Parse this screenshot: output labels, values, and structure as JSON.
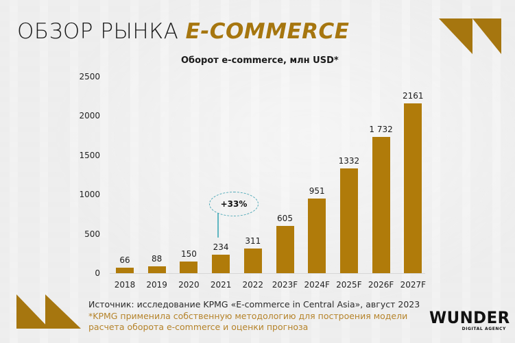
{
  "header": {
    "title_main": "ОБЗОР РЫНКА ",
    "title_accent": "E-COMMERCE"
  },
  "colors": {
    "bar": "#b07b0a",
    "accent": "#a6760f",
    "callout": "#4fa9b7",
    "note": "#b5832a",
    "background": "#ededed"
  },
  "chart_data": {
    "type": "bar",
    "title": "Оборот e-commerce, млн USD*",
    "xlabel": "",
    "ylabel": "",
    "ylim": [
      0,
      2500
    ],
    "yticks": [
      0,
      500,
      1000,
      1500,
      2000,
      2500
    ],
    "grid": false,
    "categories": [
      "2018",
      "2019",
      "2020",
      "2021",
      "2022",
      "2023F",
      "2024F",
      "2025F",
      "2026F",
      "2027F"
    ],
    "values": [
      66,
      88,
      150,
      234,
      311,
      605,
      951,
      1332,
      1732,
      2161
    ],
    "value_labels": [
      "66",
      "88",
      "150",
      "234",
      "311",
      "605",
      "951",
      "1332",
      "1 732",
      "2161"
    ],
    "annotations": [
      {
        "text": "+33%",
        "anchor_category": "2021",
        "style": "dashed-ellipse"
      }
    ]
  },
  "footer": {
    "source": "Источник: исследование KPMG «E-commerce in Central Asia», август 2023",
    "note_line1": "*KPMG применила собственную методологию для построения модели",
    "note_line2": "расчета оборота e-commerce и оценки прогноза"
  },
  "logo": {
    "main": "WUNDER",
    "sub": "DIGITAL AGENCY"
  }
}
